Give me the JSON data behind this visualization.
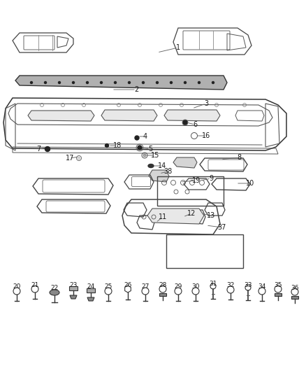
{
  "bg_color": "#ffffff",
  "fig_width": 4.38,
  "fig_height": 5.33,
  "dpi": 100,
  "tc": "#1a1a1a",
  "lc": "#555555",
  "fs": 7.0,
  "parts_upper": [
    [
      "1",
      255,
      68,
      225,
      75
    ],
    [
      "2",
      195,
      128,
      160,
      128
    ],
    [
      "3",
      295,
      148,
      275,
      155
    ],
    [
      "4",
      208,
      195,
      197,
      195
    ],
    [
      "5",
      215,
      213,
      200,
      211
    ],
    [
      "6",
      279,
      178,
      267,
      175
    ],
    [
      "7",
      55,
      213,
      68,
      211
    ],
    [
      "8",
      342,
      225,
      316,
      228
    ],
    [
      "9",
      302,
      255,
      287,
      258
    ],
    [
      "10",
      358,
      262,
      338,
      262
    ],
    [
      "11",
      233,
      310,
      223,
      318
    ],
    [
      "12",
      274,
      305,
      262,
      310
    ],
    [
      "13",
      302,
      308,
      288,
      305
    ],
    [
      "14",
      232,
      237,
      218,
      237
    ],
    [
      "15",
      222,
      222,
      207,
      222
    ],
    [
      "16",
      295,
      194,
      280,
      194
    ],
    [
      "17",
      100,
      226,
      113,
      224
    ],
    [
      "18",
      168,
      208,
      155,
      208
    ],
    [
      "19",
      281,
      258,
      258,
      260
    ],
    [
      "37",
      318,
      325,
      295,
      322
    ],
    [
      "38",
      240,
      245,
      228,
      248
    ]
  ],
  "parts_bottom": [
    [
      "20",
      24,
      410
    ],
    [
      "21",
      50,
      407
    ],
    [
      "22",
      78,
      411
    ],
    [
      "23",
      105,
      407
    ],
    [
      "24",
      130,
      410
    ],
    [
      "25",
      155,
      410
    ],
    [
      "26",
      183,
      407
    ],
    [
      "27",
      208,
      410
    ],
    [
      "28",
      233,
      407
    ],
    [
      "29",
      255,
      410
    ],
    [
      "30",
      280,
      410
    ],
    [
      "31",
      305,
      405
    ],
    [
      "32",
      330,
      408
    ],
    [
      "33",
      355,
      407
    ],
    [
      "34",
      375,
      410
    ],
    [
      "35",
      398,
      407
    ],
    [
      "36",
      422,
      411
    ]
  ]
}
